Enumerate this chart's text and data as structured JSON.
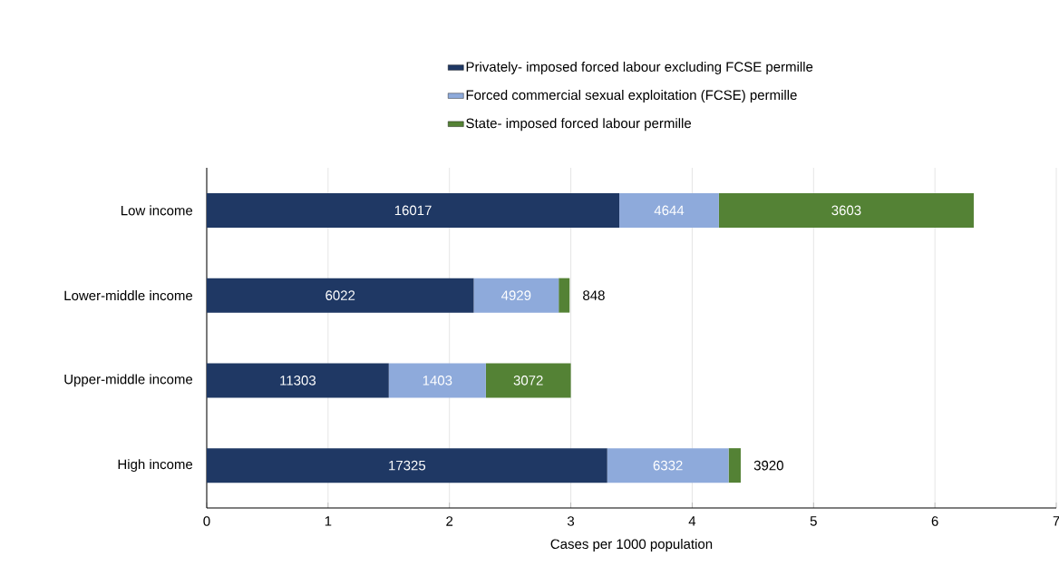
{
  "chart_data": {
    "type": "bar",
    "orientation": "horizontal",
    "stacked": true,
    "xlabel": "Cases per 1000 population",
    "categories": [
      "Low income",
      "Lower-middle income",
      "Upper-middle income",
      "High income"
    ],
    "series": [
      {
        "name": "Privately- imposed forced labour excluding FCSE permille",
        "color": "#1f3864",
        "values": [
          3.4,
          2.2,
          1.5,
          3.3
        ]
      },
      {
        "name": "Forced commercial sexual exploitation (FCSE) permille",
        "color": "#8eaadb",
        "values": [
          0.82,
          0.7,
          0.8,
          1.0
        ]
      },
      {
        "name": "State- imposed forced  labour permille",
        "color": "#548235",
        "values": [
          2.1,
          0.09,
          0.7,
          0.1
        ]
      }
    ],
    "annotations": [
      "16017",
      "4644",
      "3603",
      "6022",
      "4929",
      "848",
      "11303",
      "1403",
      "3072",
      "17325",
      "6332",
      "3920"
    ],
    "xlim": [
      0,
      7
    ],
    "xticks": [
      0,
      1,
      2,
      3,
      4,
      5,
      6,
      7
    ],
    "grid": "x",
    "legend": "top"
  }
}
